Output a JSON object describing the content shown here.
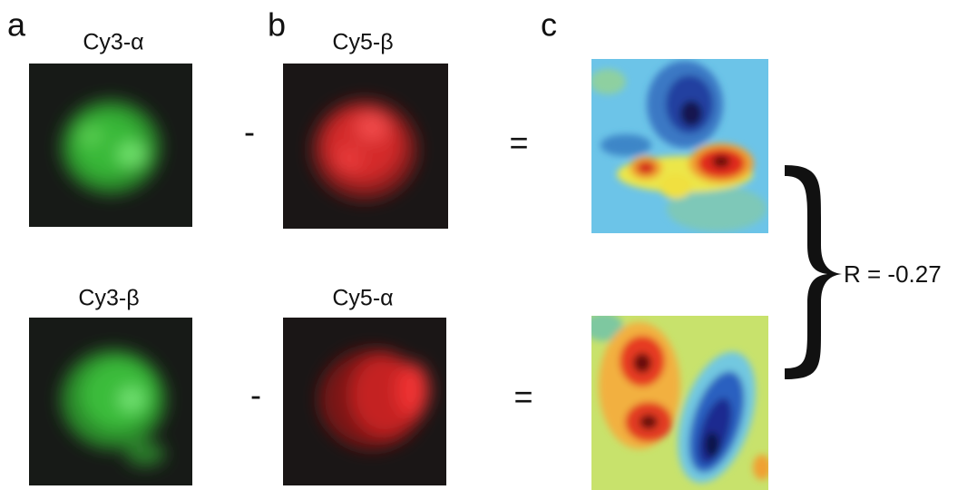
{
  "panel_labels": [
    "a",
    "b",
    "c"
  ],
  "images": [
    {
      "label": "Cy3-α"
    },
    {
      "label": "Cy5-β"
    },
    {
      "label": "Cy3-β"
    },
    {
      "label": "Cy5-α"
    }
  ],
  "operators": [
    "-",
    "=",
    "-",
    "="
  ],
  "correlation": "R = -0.27"
}
